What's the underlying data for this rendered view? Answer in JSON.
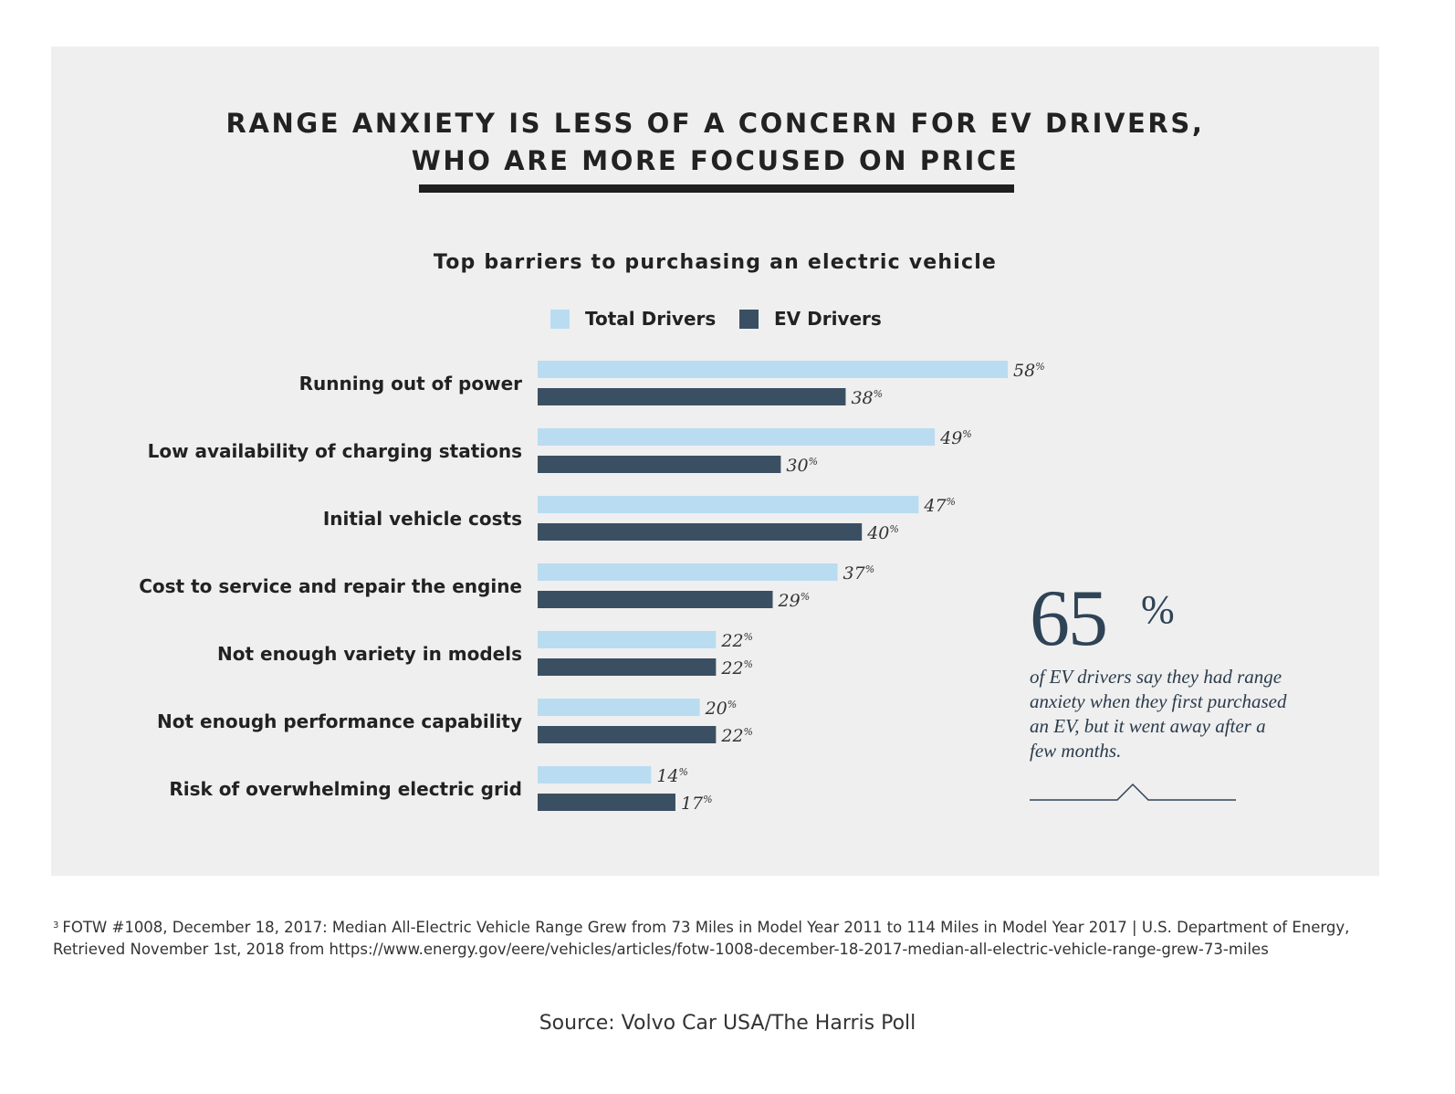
{
  "headline": {
    "line1": "RANGE ANXIETY IS LESS OF A CONCERN FOR EV DRIVERS,",
    "line2": "WHO ARE MORE FOCUSED ON PRICE"
  },
  "callout": {
    "number": "65",
    "percent_sign": "%",
    "text": "of EV drivers say they had range anxiety when they first purchased an EV, but it went away after a few months."
  },
  "footnote": {
    "marker": "3",
    "text": "FOTW #1008, December 18, 2017: Median All-Electric Vehicle Range Grew from 73 Miles in Model Year 2011 to 114 Miles in Model Year 2017 | U.S. Department of Energy, Retrieved November 1st, 2018 from https://www.energy.gov/eere/vehicles/articles/fotw-1008-december-18-2017-median-all-electric-vehicle-range-grew-73-miles"
  },
  "source": "Source: Volvo Car USA/The Harris Poll",
  "colors": {
    "total_drivers": "#b9dcf1",
    "ev_drivers": "#3a5062",
    "panel_background": "#efefef"
  },
  "chart_data": {
    "type": "bar",
    "orientation": "horizontal",
    "title": "Top barriers to purchasing an electric vehicle",
    "categories": [
      "Running out of power",
      "Low availability of charging stations",
      "Initial vehicle costs",
      "Cost to service and repair the engine",
      "Not enough variety in models",
      "Not enough performance capability",
      "Risk of overwhelming electric grid"
    ],
    "series": [
      {
        "name": "Total Drivers",
        "values": [
          58,
          49,
          47,
          37,
          22,
          20,
          14
        ]
      },
      {
        "name": "EV Drivers",
        "values": [
          38,
          30,
          40,
          29,
          22,
          22,
          17
        ]
      }
    ],
    "value_suffix": "%",
    "xlim": [
      0,
      58
    ],
    "grid": false,
    "legend": "top-center"
  }
}
